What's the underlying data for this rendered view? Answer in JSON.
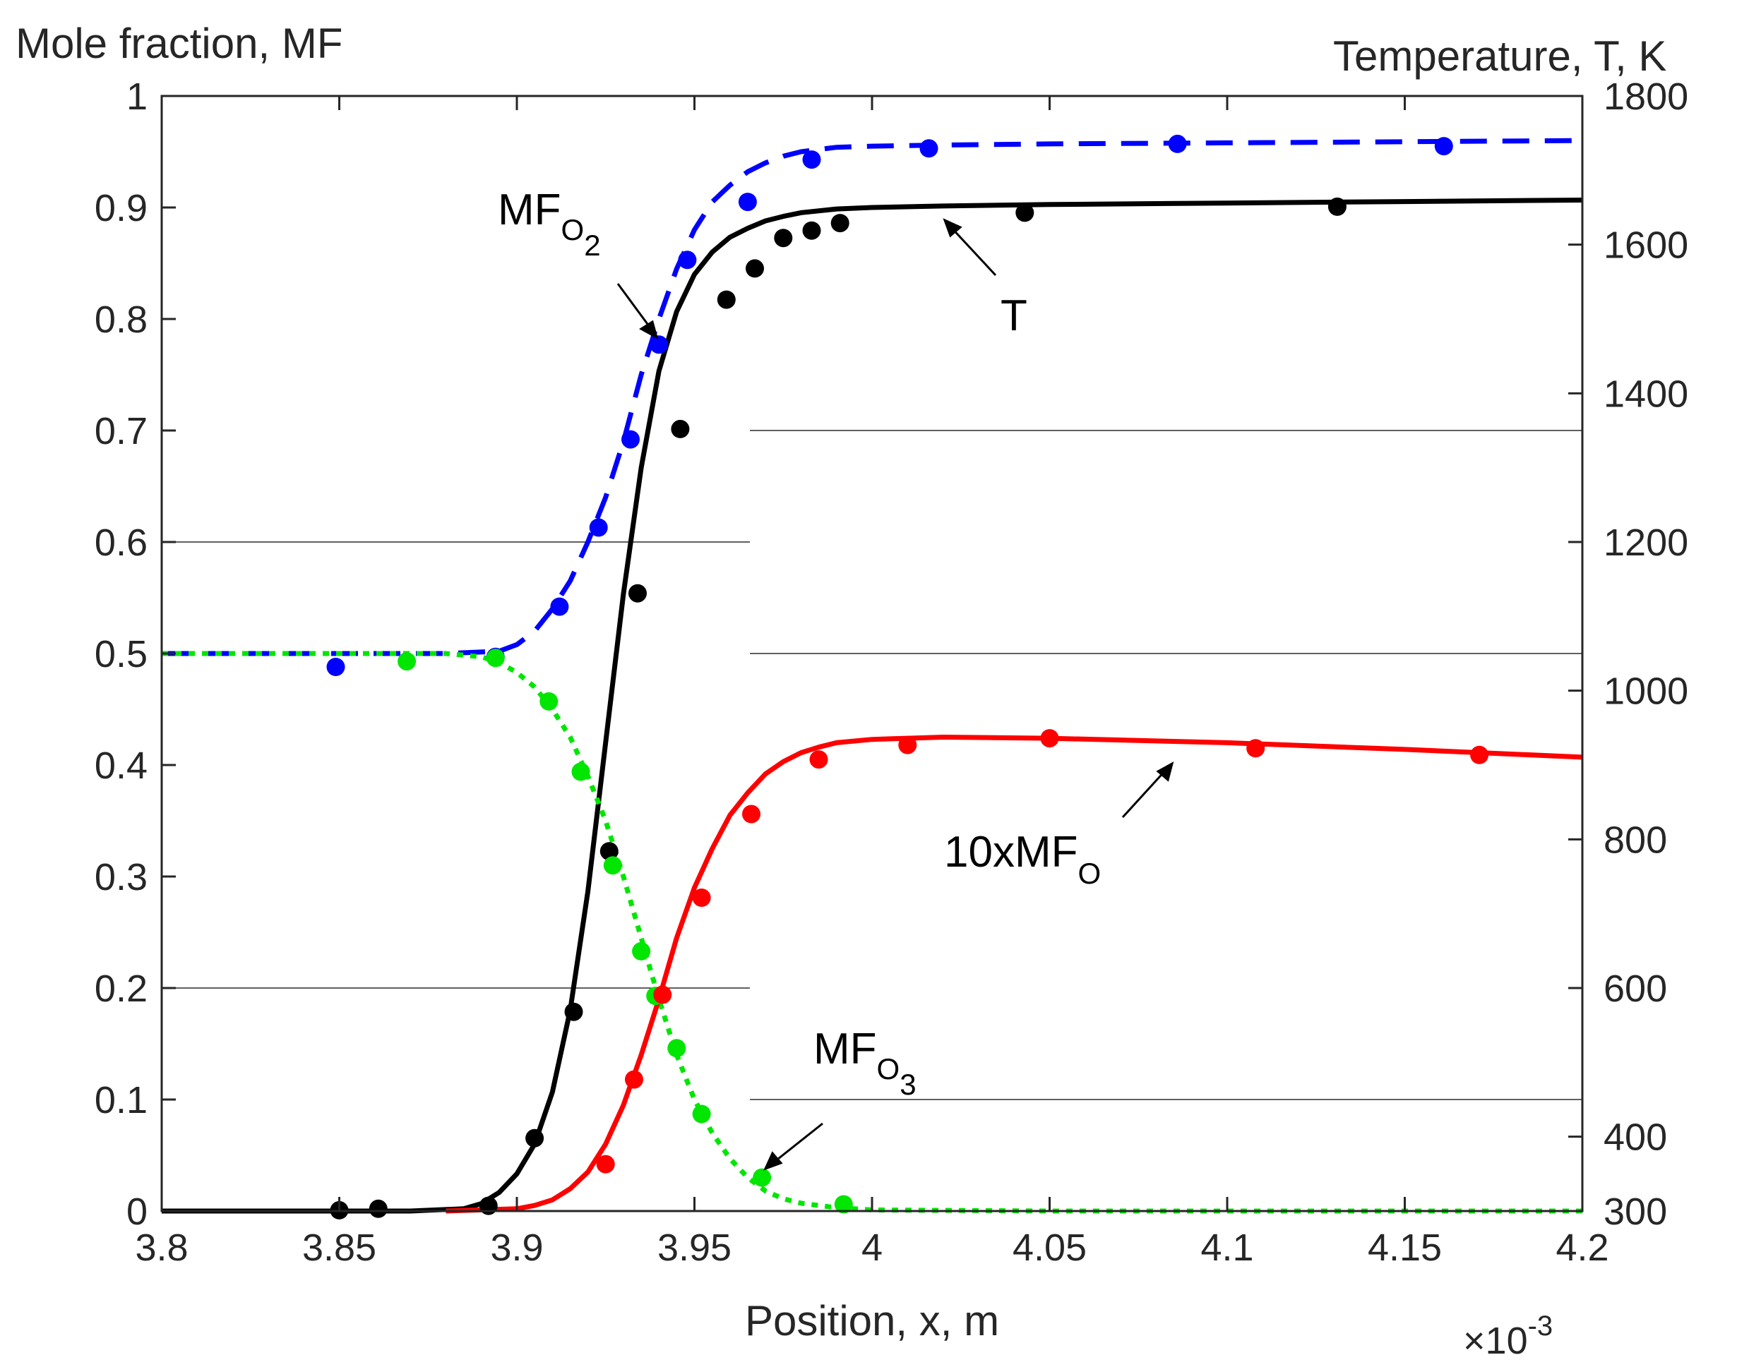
{
  "chart_data": {
    "type": "line",
    "title": "",
    "xlabel": "Position, x, m",
    "x_exponent_label": "×10",
    "x_exponent_power": "-3",
    "ylabel_left": "Mole fraction, MF",
    "ylabel_right": "Temperature, T, K",
    "xlim": [
      3.8,
      4.2
    ],
    "ylim_left": [
      0,
      1
    ],
    "ylim_right": [
      300,
      1800
    ],
    "x_ticks": [
      3.8,
      3.85,
      3.9,
      3.95,
      4.0,
      4.05,
      4.1,
      4.15,
      4.2
    ],
    "x_tick_labels": [
      "3.8",
      "3.85",
      "3.9",
      "3.95",
      "4",
      "4.05",
      "4.1",
      "4.15",
      "4.2"
    ],
    "y_left_ticks": [
      0,
      0.1,
      0.2,
      0.3,
      0.4,
      0.5,
      0.6,
      0.7,
      0.8,
      0.9,
      1
    ],
    "y_left_tick_labels": [
      "0",
      "0.1",
      "0.2",
      "0.3",
      "0.4",
      "0.5",
      "0.6",
      "0.7",
      "0.8",
      "0.9",
      "1"
    ],
    "y_right_ticks": [
      300,
      400,
      600,
      800,
      1000,
      1200,
      1400,
      1600,
      1800
    ],
    "y_right_tick_labels": [
      "300",
      "400",
      "600",
      "800",
      "1000",
      "1200",
      "1400",
      "1600",
      "1800"
    ],
    "partial_grid_left": [
      0.2,
      0.6
    ],
    "partial_grid_right": [
      0.1,
      0.5,
      0.7
    ],
    "series": [
      {
        "name": "MF_O2",
        "axis": "left",
        "color": "#0000ff",
        "style": "dashed",
        "line": {
          "x": [
            3.8,
            3.85,
            3.88,
            3.895,
            3.9,
            3.905,
            3.91,
            3.915,
            3.92,
            3.925,
            3.93,
            3.935,
            3.94,
            3.945,
            3.95,
            3.955,
            3.96,
            3.965,
            3.97,
            3.975,
            3.98,
            3.985,
            3.99,
            4.0,
            4.02,
            4.05,
            4.1,
            4.15,
            4.2
          ],
          "y": [
            0.5,
            0.5,
            0.5,
            0.502,
            0.508,
            0.52,
            0.54,
            0.565,
            0.6,
            0.64,
            0.69,
            0.75,
            0.8,
            0.845,
            0.88,
            0.905,
            0.92,
            0.932,
            0.94,
            0.946,
            0.95,
            0.952,
            0.954,
            0.955,
            0.956,
            0.957,
            0.958,
            0.959,
            0.96
          ]
        },
        "markers": {
          "x": [
            3.849,
            3.894,
            3.912,
            3.923,
            3.932,
            3.94,
            3.948,
            3.965,
            3.983,
            4.016,
            4.086,
            4.161
          ],
          "y": [
            0.488,
            0.497,
            0.542,
            0.613,
            0.692,
            0.777,
            0.853,
            0.905,
            0.943,
            0.953,
            0.957,
            0.955
          ]
        }
      },
      {
        "name": "T",
        "axis": "right",
        "color": "#000000",
        "style": "solid",
        "line": {
          "x": [
            3.8,
            3.87,
            3.885,
            3.89,
            3.895,
            3.9,
            3.905,
            3.91,
            3.915,
            3.92,
            3.925,
            3.93,
            3.935,
            3.94,
            3.945,
            3.95,
            3.955,
            3.96,
            3.965,
            3.97,
            3.975,
            3.98,
            3.99,
            4.0,
            4.02,
            4.05,
            4.1,
            4.15,
            4.2
          ],
          "y": [
            300,
            300,
            303,
            310,
            325,
            350,
            390,
            460,
            570,
            730,
            930,
            1130,
            1300,
            1430,
            1510,
            1560,
            1590,
            1610,
            1622,
            1632,
            1638,
            1643,
            1648,
            1650,
            1652,
            1654,
            1656,
            1658,
            1660
          ]
        },
        "markers": {
          "x": [
            3.85,
            3.861,
            3.892,
            3.905,
            3.916,
            3.926,
            3.934,
            3.946,
            3.959,
            3.967,
            3.975,
            3.983,
            3.991,
            4.043,
            4.131
          ],
          "y": [
            301,
            303,
            307,
            398,
            568,
            784,
            1131,
            1352,
            1526,
            1568,
            1609,
            1619,
            1629,
            1643,
            1651
          ]
        }
      },
      {
        "name": "MF_O3",
        "axis": "left",
        "color": "#00e600",
        "style": "dotted",
        "line": {
          "x": [
            3.8,
            3.85,
            3.88,
            3.89,
            3.895,
            3.9,
            3.905,
            3.91,
            3.915,
            3.92,
            3.925,
            3.93,
            3.935,
            3.94,
            3.945,
            3.95,
            3.955,
            3.96,
            3.965,
            3.97,
            3.975,
            3.98,
            3.99,
            4.0,
            4.05,
            4.1,
            4.15,
            4.2
          ],
          "y": [
            0.5,
            0.5,
            0.5,
            0.497,
            0.492,
            0.483,
            0.47,
            0.45,
            0.425,
            0.39,
            0.35,
            0.3,
            0.245,
            0.19,
            0.14,
            0.1,
            0.07,
            0.047,
            0.03,
            0.018,
            0.011,
            0.007,
            0.003,
            0.001,
            0.0,
            0.0,
            0.0,
            0.0
          ]
        },
        "markers": {
          "x": [
            3.869,
            3.894,
            3.909,
            3.918,
            3.927,
            3.935,
            3.939,
            3.945,
            3.952,
            3.969,
            3.992
          ],
          "y": [
            0.493,
            0.496,
            0.457,
            0.394,
            0.31,
            0.233,
            0.193,
            0.146,
            0.087,
            0.03,
            0.006
          ]
        }
      },
      {
        "name": "10xMF_O",
        "axis": "left",
        "color": "#ff0000",
        "style": "solid",
        "line": {
          "x": [
            3.88,
            3.9,
            3.905,
            3.91,
            3.915,
            3.92,
            3.925,
            3.93,
            3.935,
            3.94,
            3.945,
            3.95,
            3.955,
            3.96,
            3.965,
            3.97,
            3.975,
            3.98,
            3.985,
            3.99,
            4.0,
            4.02,
            4.05,
            4.1,
            4.15,
            4.2
          ],
          "y": [
            0.0,
            0.002,
            0.005,
            0.01,
            0.02,
            0.035,
            0.06,
            0.095,
            0.14,
            0.19,
            0.245,
            0.29,
            0.325,
            0.355,
            0.375,
            0.392,
            0.403,
            0.411,
            0.416,
            0.42,
            0.423,
            0.425,
            0.424,
            0.42,
            0.414,
            0.407
          ]
        },
        "markers": {
          "x": [
            3.925,
            3.933,
            3.941,
            3.952,
            3.966,
            3.985,
            4.01,
            4.05,
            4.108,
            4.171
          ],
          "y": [
            0.042,
            0.118,
            0.194,
            0.281,
            0.356,
            0.405,
            0.418,
            0.424,
            0.415,
            0.409
          ]
        }
      }
    ],
    "annotations": [
      {
        "name": "mf-o2",
        "base": "MF",
        "sub": "O",
        "subsub": "2"
      },
      {
        "name": "t",
        "base": "T",
        "sub": "",
        "subsub": ""
      },
      {
        "name": "mf-o",
        "base": "10xMF",
        "sub": "O",
        "subsub": ""
      },
      {
        "name": "mf-o3",
        "base": "MF",
        "sub": "O",
        "subsub": "3"
      }
    ]
  }
}
